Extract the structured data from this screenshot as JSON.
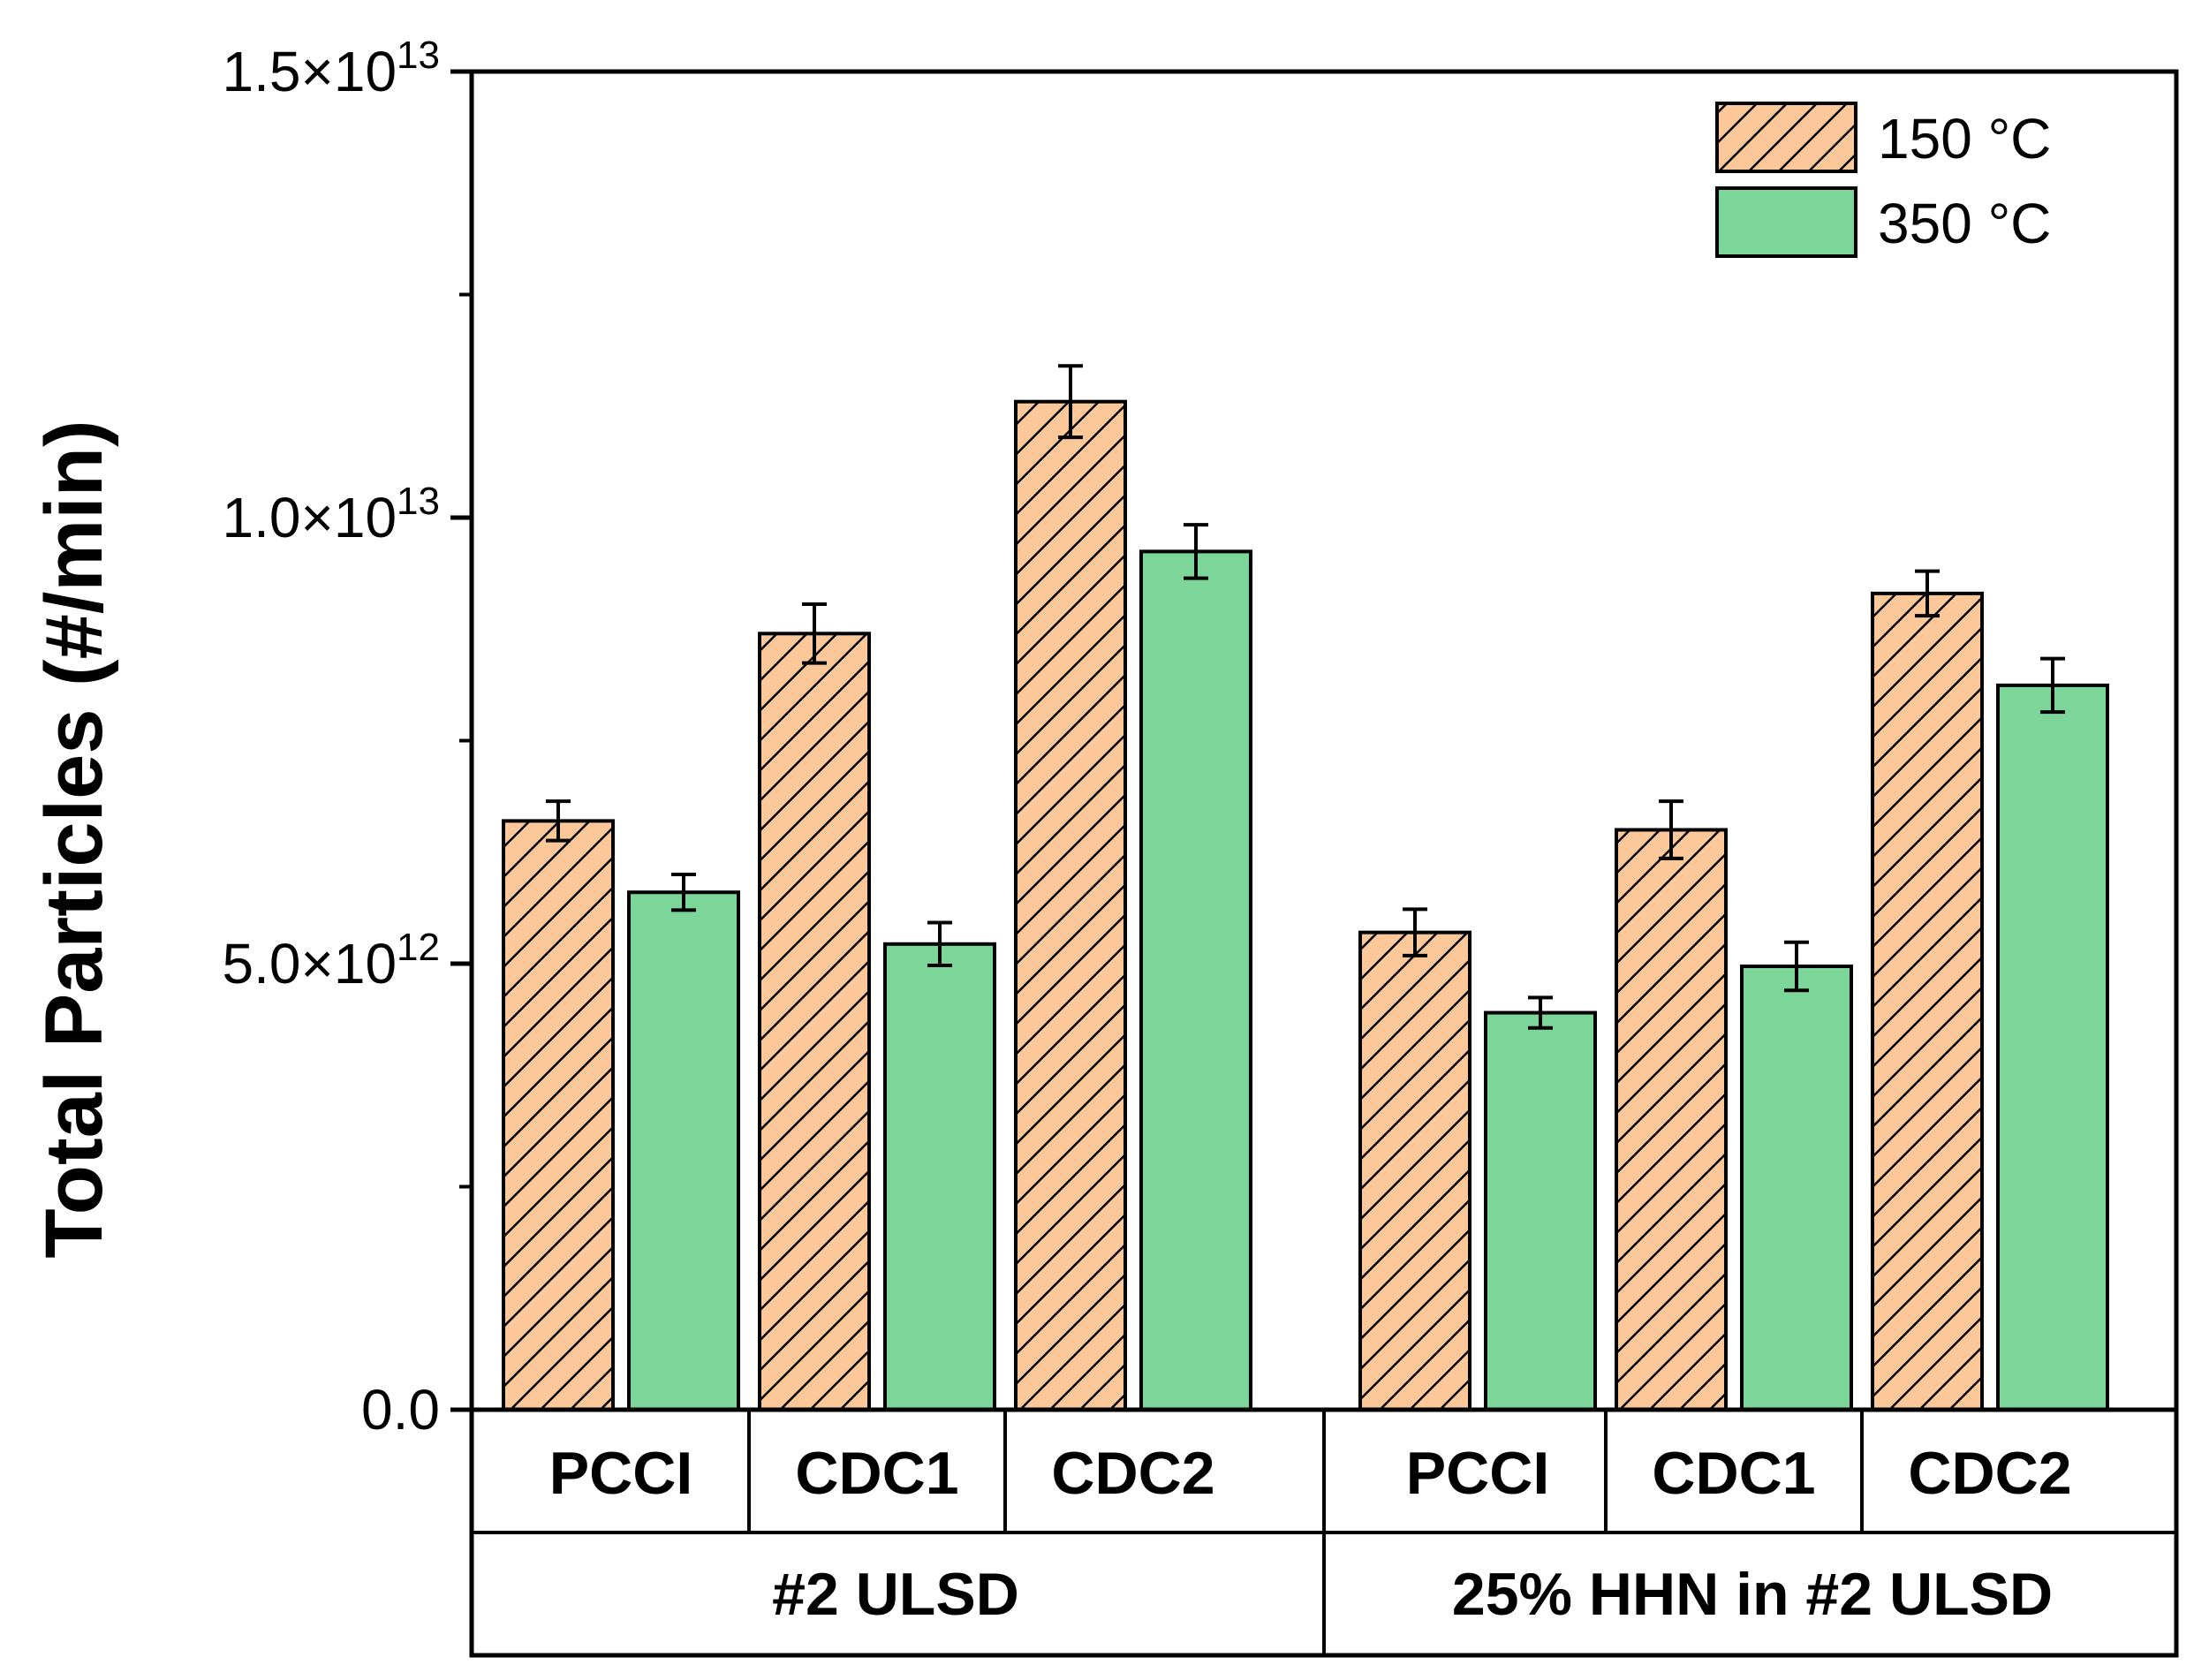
{
  "chart_data": {
    "type": "bar",
    "ylabel": "Total Particles (#/min)",
    "ylim": [
      0,
      15000000000000
    ],
    "y_ticks": [
      {
        "value": 0,
        "mantissa": "0.0",
        "times": "",
        "exp": ""
      },
      {
        "value": 5000000000000,
        "mantissa": "5.0",
        "times": "×10",
        "exp": "12"
      },
      {
        "value": 10000000000000,
        "mantissa": "1.0",
        "times": "×10",
        "exp": "13"
      },
      {
        "value": 15000000000000,
        "mantissa": "1.5",
        "times": "×10",
        "exp": "13"
      }
    ],
    "groups": [
      {
        "label": "#2 ULSD",
        "categories": [
          "PCCI",
          "CDC1",
          "CDC2"
        ]
      },
      {
        "label": "25% HHN in #2 ULSD",
        "categories": [
          "PCCI",
          "CDC1",
          "CDC2"
        ]
      }
    ],
    "series": [
      {
        "name": "150 °C",
        "color": "#fcc89a",
        "pattern": "hatch",
        "values": [
          6600000000000,
          8700000000000,
          11300000000000,
          5350000000000,
          6500000000000,
          9150000000000
        ],
        "errors": [
          220000000000,
          330000000000,
          400000000000,
          260000000000,
          320000000000,
          250000000000
        ]
      },
      {
        "name": "350 °C",
        "color": "#7dd699",
        "pattern": "solid",
        "values": [
          5800000000000,
          5220000000000,
          9620000000000,
          4450000000000,
          4970000000000,
          8120000000000
        ],
        "errors": [
          200000000000,
          240000000000,
          300000000000,
          170000000000,
          270000000000,
          300000000000
        ]
      }
    ],
    "legend_position": "top-right"
  }
}
